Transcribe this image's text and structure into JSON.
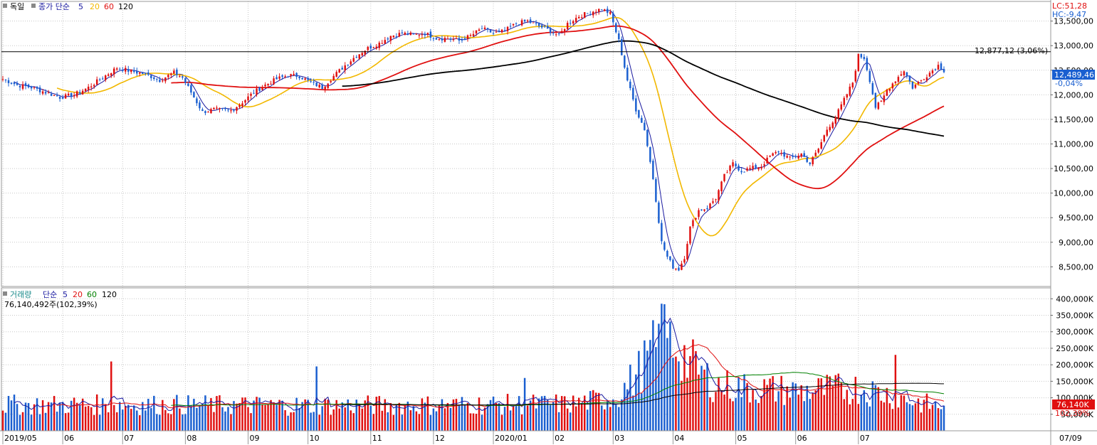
{
  "header": {
    "market": "독일",
    "indicator": "종가 단순",
    "ma_periods": [
      "5",
      "20",
      "60",
      "120"
    ],
    "ma_colors": [
      "#1a1aa0",
      "#f2b800",
      "#e01010",
      "#000000"
    ]
  },
  "lc_hc": {
    "lc": "LC:51,28",
    "hc": "HC:-9,47"
  },
  "hline_label": "12,877,12 (3,06%)",
  "last_price_badge": "12,489,46",
  "last_change": "-0,04%",
  "volume_header": {
    "title": "거래량",
    "indicator": "단순",
    "ma_periods": [
      "5",
      "20",
      "60",
      "120"
    ],
    "ma_colors": [
      "#1a1aa0",
      "#e01010",
      "#008000",
      "#000000"
    ],
    "summary": "76,140,492주(102,39%)"
  },
  "volume_badge": "76,140K",
  "volume_change": "102,39%",
  "date_right": "07/09",
  "colors": {
    "up": "#e01010",
    "down": "#1a5fd0",
    "grid": "#c8c8c8",
    "axis_bg": "#ffffff",
    "hline": "#000000",
    "badge_blue": "#1a5fd0",
    "badge_red": "#e01010"
  },
  "chart_data": [
    {
      "type": "candlestick",
      "title": "",
      "ylim": [
        8100,
        13900
      ],
      "y_ticks": [
        8500,
        9000,
        9500,
        10000,
        10500,
        11000,
        11500,
        12000,
        12500,
        13000,
        13500
      ],
      "y_tick_labels": [
        "8,500,00",
        "9,000,00",
        "9,500,00",
        "10,000,00",
        "10,500,00",
        "11,000,00",
        "11,500,00",
        "12,000,00",
        "12,500,00",
        "13,000,00",
        "13,500,00"
      ],
      "hline": 12877.12,
      "x_tick_labels": [
        "2019/05",
        "06",
        "07",
        "08",
        "09",
        "10",
        "11",
        "12",
        "2020/01",
        "02",
        "03",
        "04",
        "05",
        "06",
        "07"
      ],
      "close_anchors": [
        [
          0,
          12320
        ],
        [
          5,
          12200
        ],
        [
          10,
          12150
        ],
        [
          15,
          12050
        ],
        [
          20,
          11950
        ],
        [
          25,
          12000
        ],
        [
          30,
          12150
        ],
        [
          35,
          12350
        ],
        [
          40,
          12550
        ],
        [
          45,
          12480
        ],
        [
          50,
          12420
        ],
        [
          55,
          12300
        ],
        [
          60,
          12450
        ],
        [
          63,
          12350
        ],
        [
          67,
          11950
        ],
        [
          70,
          11650
        ],
        [
          74,
          11700
        ],
        [
          80,
          11680
        ],
        [
          84,
          11850
        ],
        [
          88,
          12050
        ],
        [
          92,
          12200
        ],
        [
          96,
          12320
        ],
        [
          100,
          12400
        ],
        [
          104,
          12380
        ],
        [
          108,
          12250
        ],
        [
          112,
          12150
        ],
        [
          116,
          12380
        ],
        [
          120,
          12600
        ],
        [
          124,
          12800
        ],
        [
          128,
          12950
        ],
        [
          132,
          13050
        ],
        [
          136,
          13200
        ],
        [
          140,
          13250
        ],
        [
          144,
          13220
        ],
        [
          148,
          13250
        ],
        [
          152,
          13150
        ],
        [
          156,
          13150
        ],
        [
          160,
          13100
        ],
        [
          164,
          13200
        ],
        [
          168,
          13350
        ],
        [
          172,
          13250
        ],
        [
          176,
          13300
        ],
        [
          180,
          13450
        ],
        [
          184,
          13500
        ],
        [
          188,
          13400
        ],
        [
          192,
          13300
        ],
        [
          195,
          13200
        ],
        [
          198,
          13450
        ],
        [
          202,
          13600
        ],
        [
          207,
          13700
        ],
        [
          210,
          13750
        ],
        [
          213,
          13650
        ],
        [
          216,
          13100
        ],
        [
          219,
          12300
        ],
        [
          222,
          11700
        ],
        [
          225,
          11300
        ],
        [
          228,
          10300
        ],
        [
          231,
          9000
        ],
        [
          233,
          8700
        ],
        [
          235,
          8500
        ],
        [
          237,
          8450
        ],
        [
          239,
          8700
        ],
        [
          241,
          9300
        ],
        [
          244,
          9650
        ],
        [
          247,
          9700
        ],
        [
          250,
          9900
        ],
        [
          253,
          10350
        ],
        [
          256,
          10600
        ],
        [
          259,
          10450
        ],
        [
          262,
          10500
        ],
        [
          266,
          10550
        ],
        [
          269,
          10750
        ],
        [
          272,
          10850
        ],
        [
          276,
          10700
        ],
        [
          280,
          10800
        ],
        [
          283,
          10600
        ],
        [
          286,
          10900
        ],
        [
          289,
          11300
        ],
        [
          292,
          11550
        ],
        [
          295,
          11900
        ],
        [
          298,
          12250
        ],
        [
          300,
          12800
        ],
        [
          302,
          12750
        ],
        [
          304,
          12300
        ],
        [
          306,
          11750
        ],
        [
          308,
          11850
        ],
        [
          310,
          12100
        ],
        [
          313,
          12300
        ],
        [
          316,
          12500
        ],
        [
          319,
          12150
        ],
        [
          322,
          12300
        ],
        [
          325,
          12450
        ],
        [
          328,
          12600
        ],
        [
          330,
          12500
        ]
      ],
      "ma": [
        {
          "name": "5",
          "color": "#1a1aa0"
        },
        {
          "name": "20",
          "color": "#f2b800"
        },
        {
          "name": "60",
          "color": "#e01010"
        },
        {
          "name": "120",
          "color": "#000000"
        }
      ]
    },
    {
      "type": "bar",
      "title": "거래량",
      "unit": "K",
      "ylim": [
        0,
        420000
      ],
      "y_ticks": [
        50000,
        100000,
        150000,
        200000,
        250000,
        300000,
        350000,
        400000
      ],
      "y_tick_labels": [
        "50,000K",
        "100,000K",
        "150,000K",
        "200,000K",
        "250,000K",
        "300,000K",
        "350,000K",
        "400,000K"
      ],
      "volume_anchors": [
        [
          0,
          85000
        ],
        [
          60,
          85000
        ],
        [
          100,
          83000
        ],
        [
          150,
          84000
        ],
        [
          200,
          88000
        ],
        [
          215,
          110000
        ],
        [
          222,
          180000
        ],
        [
          228,
          260000
        ],
        [
          232,
          310000
        ],
        [
          236,
          280000
        ],
        [
          240,
          230000
        ],
        [
          245,
          190000
        ],
        [
          250,
          150000
        ],
        [
          260,
          140000
        ],
        [
          280,
          130000
        ],
        [
          300,
          140000
        ],
        [
          310,
          120000
        ],
        [
          320,
          95000
        ],
        [
          330,
          76140
        ]
      ],
      "spikes": [
        [
          38,
          210000
        ],
        [
          110,
          195000
        ],
        [
          183,
          160000
        ],
        [
          231,
          385000
        ],
        [
          313,
          230000
        ]
      ],
      "ma": [
        {
          "name": "5",
          "color": "#1a1aa0"
        },
        {
          "name": "20",
          "color": "#e01010"
        },
        {
          "name": "60",
          "color": "#008000"
        },
        {
          "name": "120",
          "color": "#000000"
        }
      ]
    }
  ]
}
